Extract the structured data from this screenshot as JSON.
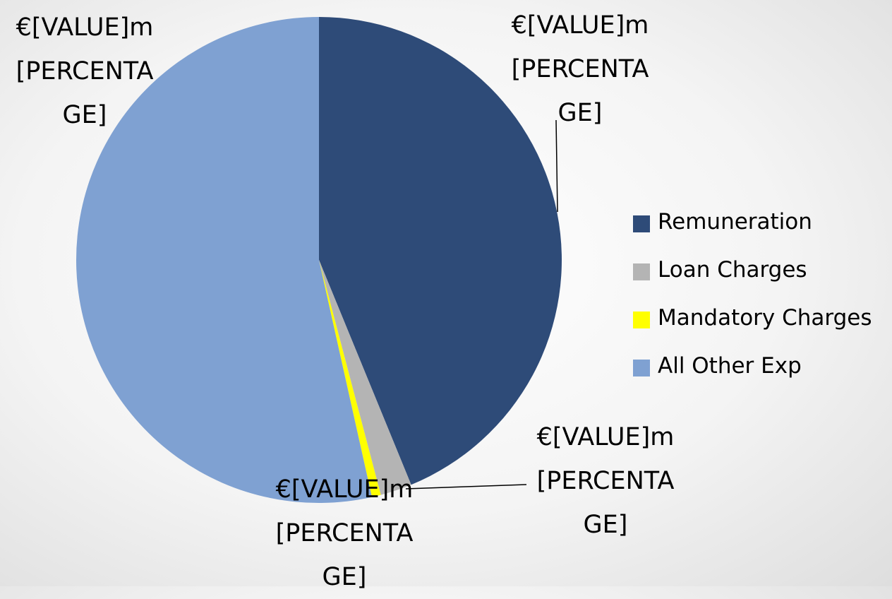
{
  "chart_data": {
    "type": "pie",
    "categories": [
      "Remuneration",
      "Loan Charges",
      "Mandatory Charges",
      "All Other Exp"
    ],
    "values": [
      43.8,
      2.1,
      0.6,
      53.5
    ],
    "value_labels": [
      "€[VALUE]m [PERCENTAGE]",
      "€[VALUE]m [PERCENTAGE]",
      "€[VALUE]m [PERCENTAGE]",
      "€[VALUE]m [PERCENTAGE]"
    ],
    "colors": [
      "#2e4b78",
      "#b4b4b4",
      "#ffff00",
      "#7fa1d2"
    ],
    "legend": "right"
  }
}
